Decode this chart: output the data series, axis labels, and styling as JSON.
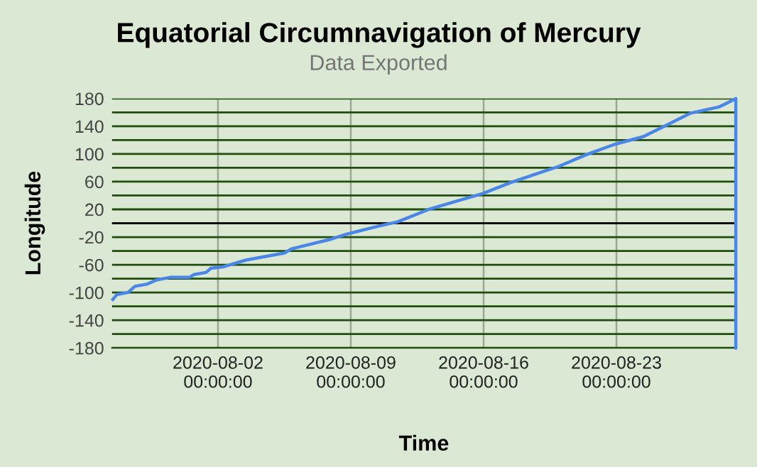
{
  "chart_data": {
    "type": "line",
    "title": "Equatorial Circumnavigation of Mercury",
    "subtitle": "Data Exported",
    "xlabel": "Time",
    "ylabel": "Longitude",
    "x": [
      "2020-07-27T11:00",
      "2020-07-27T16:00",
      "2020-07-28T06:00",
      "2020-07-28T15:00",
      "2020-07-29T06:00",
      "2020-07-29T18:00",
      "2020-07-30T12:00",
      "2020-07-31T12:00",
      "2020-07-31T18:00",
      "2020-08-01T09:00",
      "2020-08-01T15:00",
      "2020-08-02T06:00",
      "2020-08-03T12:00",
      "2020-08-05T12:00",
      "2020-08-05T21:00",
      "2020-08-07T23:00",
      "2020-08-08T18:00",
      "2020-08-09T18:00",
      "2020-08-10T12:00",
      "2020-08-11T11:00",
      "2020-08-13T05:00",
      "2020-08-15T23:00",
      "2020-08-17T11:00",
      "2020-08-18T23:00",
      "2020-08-19T23:00",
      "2020-08-21T10:00",
      "2020-08-22T22:00",
      "2020-08-24T10:00",
      "2020-08-25T16:00",
      "2020-08-26T22:00",
      "2020-08-28T10:00",
      "2020-08-29T04:00",
      "2020-08-29T07:00",
      "2020-08-29T07:00"
    ],
    "series": [
      {
        "color": "#4a86e8",
        "values": [
          -110,
          -103,
          -100,
          -91,
          -88,
          -82,
          -78,
          -78,
          -74,
          -71,
          -65,
          -63,
          -53,
          -43,
          -37,
          -23,
          -16,
          -9,
          -4,
          2,
          21,
          43,
          59,
          73,
          82,
          99,
          114,
          125,
          142,
          159,
          168,
          178,
          180,
          -180
        ]
      }
    ],
    "xlim": [
      "2020-07-27T10:00",
      "2020-08-29T07:00"
    ],
    "xticks": [
      {
        "value": "2020-08-02",
        "label": "2020-08-02\n00:00:00"
      },
      {
        "value": "2020-08-09",
        "label": "2020-08-09\n00:00:00"
      },
      {
        "value": "2020-08-16",
        "label": "2020-08-16\n00:00:00"
      },
      {
        "value": "2020-08-23",
        "label": "2020-08-23\n00:00:00"
      }
    ],
    "ylim": [
      -180,
      180
    ],
    "yticks": [
      -180,
      {
        "value": -160,
        "label": null
      },
      -140,
      {
        "value": -120,
        "label": null
      },
      -100,
      {
        "value": -80,
        "label": null
      },
      -60,
      {
        "value": -40,
        "label": null
      },
      -20,
      {
        "value": 0,
        "label": null
      },
      20,
      {
        "value": 40,
        "label": null
      },
      60,
      {
        "value": 80,
        "label": null
      },
      100,
      {
        "value": 120,
        "label": null
      },
      140,
      {
        "value": 160,
        "label": null
      },
      180
    ],
    "ref_lines": [
      {
        "axis": "y",
        "value": 0,
        "color": "#000000"
      }
    ],
    "grid": true,
    "marker": "none",
    "line_style": "solid",
    "legend": false
  }
}
